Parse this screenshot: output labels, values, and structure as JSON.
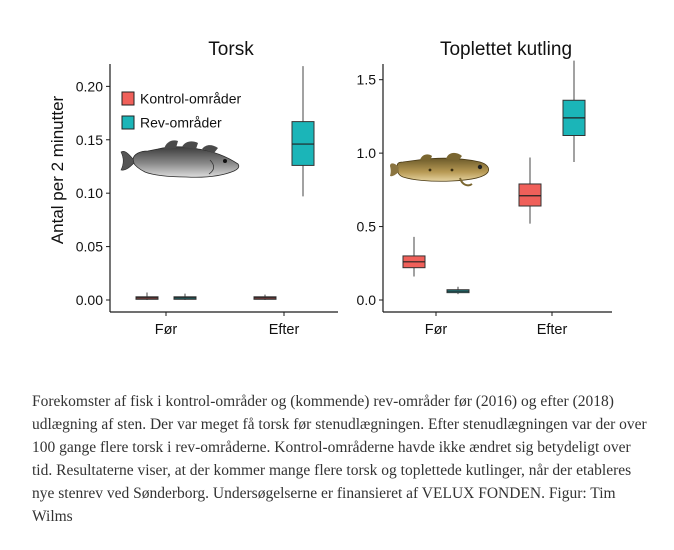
{
  "colors": {
    "kontrol": "#f0605a",
    "rev": "#1bb5b8",
    "axis": "#1a1a1a"
  },
  "shared": {
    "ylabel": "Antal per 2 minutter",
    "legend": {
      "kontrol": "Kontrol-områder",
      "rev": "Rev-områder"
    }
  },
  "chart_data": [
    {
      "type": "box",
      "title": "Torsk",
      "categories": [
        "Før",
        "Efter"
      ],
      "ylim": [
        0,
        0.22
      ],
      "yticks": [
        0.0,
        0.05,
        0.1,
        0.15,
        0.2
      ],
      "ytick_labels": [
        "0.00",
        "0.05",
        "0.10",
        "0.15",
        "0.20"
      ],
      "legend_position": "top-left",
      "series": [
        {
          "name": "Kontrol-områder",
          "color_key": "kontrol",
          "boxes": [
            {
              "category": "Før",
              "min": 0.0,
              "q1": 0.001,
              "median": 0.002,
              "q3": 0.003,
              "max": 0.007
            },
            {
              "category": "Efter",
              "min": 0.0,
              "q1": 0.001,
              "median": 0.002,
              "q3": 0.003,
              "max": 0.005
            }
          ]
        },
        {
          "name": "Rev-områder",
          "color_key": "rev",
          "boxes": [
            {
              "category": "Før",
              "min": 0.0,
              "q1": 0.001,
              "median": 0.002,
              "q3": 0.003,
              "max": 0.006
            },
            {
              "category": "Efter",
              "min": 0.097,
              "q1": 0.126,
              "median": 0.146,
              "q3": 0.167,
              "max": 0.219
            }
          ]
        }
      ]
    },
    {
      "type": "box",
      "title": "Toplettet kutling",
      "categories": [
        "Før",
        "Efter"
      ],
      "ylim": [
        0,
        1.6
      ],
      "yticks": [
        0.0,
        0.5,
        1.0,
        1.5
      ],
      "ytick_labels": [
        "0.0",
        "0.5",
        "1.0",
        "1.5"
      ],
      "series": [
        {
          "name": "Kontrol-områder",
          "color_key": "kontrol",
          "boxes": [
            {
              "category": "Før",
              "min": 0.16,
              "q1": 0.22,
              "median": 0.26,
              "q3": 0.3,
              "max": 0.43
            },
            {
              "category": "Efter",
              "min": 0.52,
              "q1": 0.64,
              "median": 0.71,
              "q3": 0.79,
              "max": 0.97
            }
          ]
        },
        {
          "name": "Rev-områder",
          "color_key": "rev",
          "boxes": [
            {
              "category": "Før",
              "min": 0.04,
              "q1": 0.05,
              "median": 0.06,
              "q3": 0.07,
              "max": 0.09
            },
            {
              "category": "Efter",
              "min": 0.94,
              "q1": 1.12,
              "median": 1.24,
              "q3": 1.36,
              "max": 1.63
            }
          ]
        }
      ]
    }
  ],
  "icons": [
    "cod-fish-image",
    "goby-fish-image"
  ],
  "caption": "Forekomster af fisk i kontrol-områder og (kommende) rev-områder før (2016) og efter (2018) udlægning af sten. Der var meget få torsk før stenudlægningen. Efter stenudlægningen var der over 100 gange flere torsk i rev-områderne. Kontrol-områderne havde ikke ændret sig betydeligt over tid. Resultaterne viser, at der kommer mange flere torsk og toplettede kutlinger, når der etableres nye stenrev ved Sønderborg. Undersøgelserne er finansieret af VELUX FONDEN. Figur: Tim Wilms"
}
